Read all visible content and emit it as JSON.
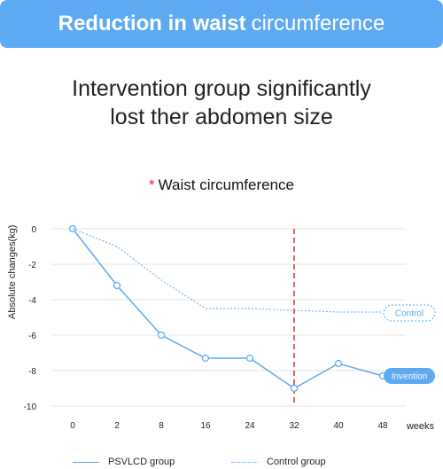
{
  "banner": {
    "title_bold": "Reduction in waist",
    "title_light": "circumference"
  },
  "headline": {
    "line1": "Intervention group significantly",
    "line2": "lost ther abdomen size"
  },
  "chart_data": {
    "type": "line",
    "title_marker": "*",
    "title": "Waist circumference",
    "ylabel": "Absolute changes(kg)",
    "xlabel": "weeks",
    "categories": [
      "0",
      "2",
      "8",
      "16",
      "24",
      "32",
      "40",
      "48"
    ],
    "ylim": [
      -10,
      0
    ],
    "yticks": [
      0,
      -2,
      -4,
      -6,
      -8,
      -10
    ],
    "grid": true,
    "series": [
      {
        "name": "PSVLCD group",
        "style": "solid",
        "markers": true,
        "color": "#5eaaf2",
        "values": [
          0,
          -3.2,
          -6.0,
          -7.3,
          -7.3,
          -9.0,
          -7.6,
          -8.3
        ],
        "end_label": "Invention"
      },
      {
        "name": "Control group",
        "style": "dotted",
        "markers": false,
        "color": "#5eaaf2",
        "values": [
          0,
          -1.0,
          -2.9,
          -4.5,
          -4.5,
          -4.6,
          -4.7,
          -4.7
        ],
        "end_label": "Control"
      }
    ],
    "reference_line": {
      "category": "32",
      "color": "#e3262c",
      "style": "dashed"
    },
    "legend_position": "bottom"
  },
  "legend": {
    "psvlcd_label": "PSVLCD group",
    "control_label": "Control group"
  }
}
